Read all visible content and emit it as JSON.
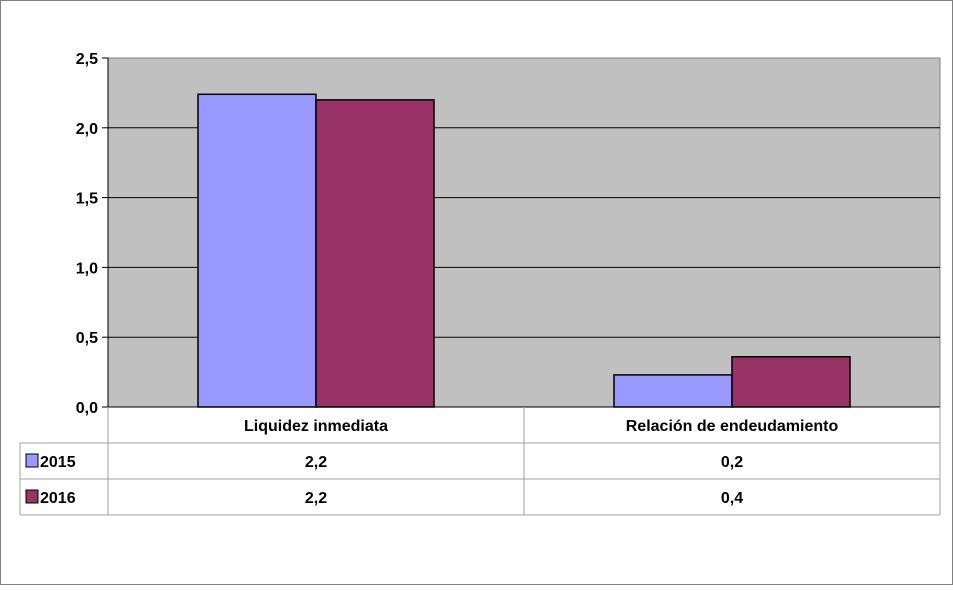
{
  "chart_data": {
    "type": "bar",
    "categories": [
      "Liquidez inmediata",
      "Relación de endeudamiento"
    ],
    "series": [
      {
        "name": "2015",
        "values": [
          2.24,
          0.23
        ],
        "color": "#9999ff"
      },
      {
        "name": "2016",
        "values": [
          2.2,
          0.36
        ],
        "color": "#993366"
      }
    ],
    "table_rows": [
      {
        "series": "2015",
        "labels": [
          "2,2",
          "0,2"
        ]
      },
      {
        "series": "2016",
        "labels": [
          "2,2",
          "0,4"
        ]
      }
    ],
    "y_ticks": [
      "0,0",
      "0,5",
      "1,0",
      "1,5",
      "2,0",
      "2,5"
    ],
    "ylim": [
      0,
      2.5
    ],
    "grid": true,
    "plot_background": "#c0c0c0",
    "legend": "data-table-left"
  }
}
